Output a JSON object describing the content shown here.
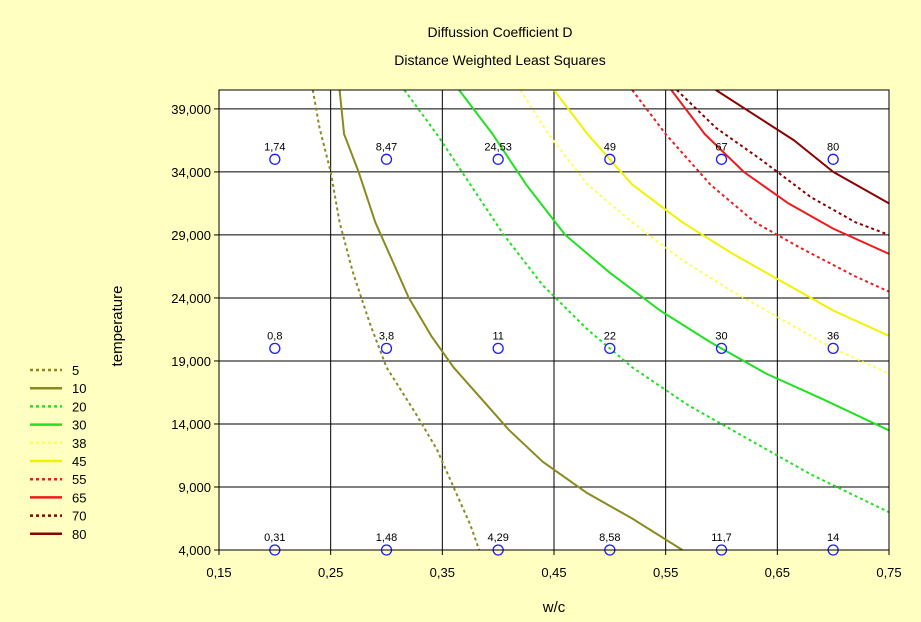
{
  "chart_data": {
    "type": "contour",
    "title": "Diffussion Coefficient D",
    "subtitle": "Distance Weighted Least Squares",
    "xlabel": "w/c",
    "ylabel": "temperature",
    "xlim": [
      0.15,
      0.75
    ],
    "ylim": [
      4000,
      40500
    ],
    "x_ticks": [
      "0,15",
      "0,25",
      "0,35",
      "0,45",
      "0,55",
      "0,65",
      "0,75"
    ],
    "x_tick_values": [
      0.15,
      0.25,
      0.35,
      0.45,
      0.55,
      0.65,
      0.75
    ],
    "y_ticks": [
      "4,000",
      "9,000",
      "14,000",
      "19,000",
      "24,000",
      "29,000",
      "34,000",
      "39,000"
    ],
    "y_tick_values": [
      4000,
      9000,
      14000,
      19000,
      24000,
      29000,
      34000,
      39000
    ],
    "grid": true,
    "legend_position": "left",
    "points": [
      {
        "x": 0.2,
        "y": 35000,
        "label": "1,74"
      },
      {
        "x": 0.3,
        "y": 35000,
        "label": "8,47"
      },
      {
        "x": 0.4,
        "y": 35000,
        "label": "24,53"
      },
      {
        "x": 0.5,
        "y": 35000,
        "label": "49"
      },
      {
        "x": 0.6,
        "y": 35000,
        "label": "67"
      },
      {
        "x": 0.7,
        "y": 35000,
        "label": "80"
      },
      {
        "x": 0.2,
        "y": 20000,
        "label": "0,8"
      },
      {
        "x": 0.3,
        "y": 20000,
        "label": "3,8"
      },
      {
        "x": 0.4,
        "y": 20000,
        "label": "11"
      },
      {
        "x": 0.5,
        "y": 20000,
        "label": "22"
      },
      {
        "x": 0.6,
        "y": 20000,
        "label": "30"
      },
      {
        "x": 0.7,
        "y": 20000,
        "label": "36"
      },
      {
        "x": 0.2,
        "y": 4000,
        "label": "0,31"
      },
      {
        "x": 0.3,
        "y": 4000,
        "label": "1,48"
      },
      {
        "x": 0.4,
        "y": 4000,
        "label": "4,29"
      },
      {
        "x": 0.5,
        "y": 4000,
        "label": "8,58"
      },
      {
        "x": 0.6,
        "y": 4000,
        "label": "11,7"
      },
      {
        "x": 0.7,
        "y": 4000,
        "label": "14"
      }
    ],
    "contours": [
      {
        "level": "5",
        "color": "#8a8a1f",
        "dash": true,
        "points": [
          [
            0.234,
            40500
          ],
          [
            0.24,
            37500
          ],
          [
            0.25,
            34000
          ],
          [
            0.258,
            30000
          ],
          [
            0.27,
            26000
          ],
          [
            0.285,
            22000
          ],
          [
            0.3,
            18500
          ],
          [
            0.325,
            15000
          ],
          [
            0.345,
            12000
          ],
          [
            0.36,
            9000
          ],
          [
            0.375,
            6000
          ],
          [
            0.383,
            4000
          ]
        ]
      },
      {
        "level": "10",
        "color": "#8a8a1f",
        "dash": false,
        "points": [
          [
            0.258,
            40500
          ],
          [
            0.262,
            37000
          ],
          [
            0.275,
            34000
          ],
          [
            0.29,
            30000
          ],
          [
            0.305,
            27000
          ],
          [
            0.32,
            24000
          ],
          [
            0.34,
            21000
          ],
          [
            0.36,
            18500
          ],
          [
            0.385,
            16000
          ],
          [
            0.41,
            13500
          ],
          [
            0.44,
            11000
          ],
          [
            0.48,
            8500
          ],
          [
            0.52,
            6500
          ],
          [
            0.565,
            4000
          ]
        ]
      },
      {
        "level": "20",
        "color": "#22e022",
        "dash": true,
        "points": [
          [
            0.316,
            40500
          ],
          [
            0.345,
            37000
          ],
          [
            0.375,
            33000
          ],
          [
            0.405,
            29000
          ],
          [
            0.44,
            25000
          ],
          [
            0.48,
            21500
          ],
          [
            0.52,
            18500
          ],
          [
            0.57,
            15500
          ],
          [
            0.62,
            13000
          ],
          [
            0.68,
            10000
          ],
          [
            0.75,
            7000
          ]
        ]
      },
      {
        "level": "30",
        "color": "#22e022",
        "dash": false,
        "points": [
          [
            0.365,
            40500
          ],
          [
            0.395,
            37000
          ],
          [
            0.425,
            33000
          ],
          [
            0.46,
            29000
          ],
          [
            0.5,
            26000
          ],
          [
            0.545,
            23000
          ],
          [
            0.59,
            20500
          ],
          [
            0.64,
            18000
          ],
          [
            0.69,
            16000
          ],
          [
            0.75,
            13500
          ]
        ]
      },
      {
        "level": "38",
        "color": "#ffff55",
        "dash": true,
        "points": [
          [
            0.42,
            40500
          ],
          [
            0.445,
            37000
          ],
          [
            0.48,
            33000
          ],
          [
            0.52,
            30000
          ],
          [
            0.565,
            27000
          ],
          [
            0.61,
            24500
          ],
          [
            0.66,
            22000
          ],
          [
            0.7,
            20000
          ],
          [
            0.75,
            18000
          ]
        ]
      },
      {
        "level": "45",
        "color": "#f2f200",
        "dash": false,
        "points": [
          [
            0.45,
            40500
          ],
          [
            0.48,
            37000
          ],
          [
            0.52,
            33000
          ],
          [
            0.565,
            30000
          ],
          [
            0.61,
            27500
          ],
          [
            0.66,
            25000
          ],
          [
            0.7,
            23000
          ],
          [
            0.75,
            21000
          ]
        ]
      },
      {
        "level": "55",
        "color": "#ee1c1c",
        "dash": true,
        "points": [
          [
            0.52,
            40500
          ],
          [
            0.55,
            37000
          ],
          [
            0.59,
            33000
          ],
          [
            0.63,
            30000
          ],
          [
            0.67,
            28000
          ],
          [
            0.72,
            25700
          ],
          [
            0.75,
            24500
          ]
        ]
      },
      {
        "level": "65",
        "color": "#ee1c1c",
        "dash": false,
        "points": [
          [
            0.555,
            40500
          ],
          [
            0.585,
            37000
          ],
          [
            0.62,
            34000
          ],
          [
            0.66,
            31500
          ],
          [
            0.7,
            29500
          ],
          [
            0.75,
            27500
          ]
        ]
      },
      {
        "level": "70",
        "color": "#8b0000",
        "dash": true,
        "points": [
          [
            0.56,
            40500
          ],
          [
            0.595,
            37500
          ],
          [
            0.635,
            35000
          ],
          [
            0.68,
            32000
          ],
          [
            0.72,
            30000
          ],
          [
            0.75,
            29000
          ]
        ]
      },
      {
        "level": "80",
        "color": "#8b0000",
        "dash": false,
        "points": [
          [
            0.595,
            40500
          ],
          [
            0.63,
            38500
          ],
          [
            0.665,
            36500
          ],
          [
            0.7,
            34000
          ],
          [
            0.75,
            31500
          ]
        ]
      }
    ]
  }
}
